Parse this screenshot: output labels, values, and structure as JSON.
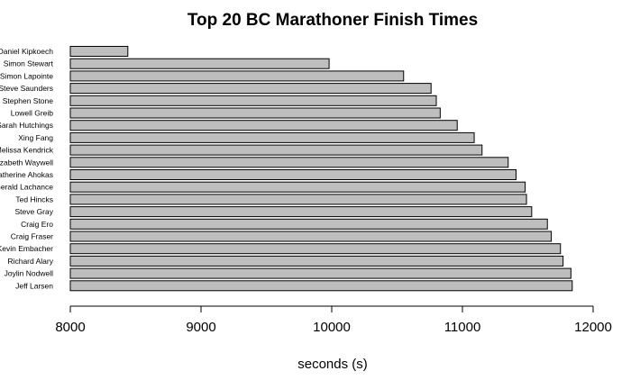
{
  "chart_data": {
    "type": "bar",
    "orientation": "horizontal",
    "title": "Top 20 BC Marathoner Finish Times",
    "xlabel": "seconds (s)",
    "ylabel": "",
    "xlim": [
      8000,
      12000
    ],
    "xticks": [
      "8000",
      "9000",
      "10000",
      "11000",
      "12000"
    ],
    "grid": false,
    "legend": "none",
    "bar_color": "#bebebe",
    "categories": [
      "Daniel Kipkoech",
      "Simon Stewart",
      "Simon Lapointe",
      "Steve Saunders",
      "Stephen Stone",
      "Lowell Greib",
      "Sarah Hutchings",
      "Xing Fang",
      "Melissa Kendrick",
      "Elizabeth Waywell",
      "Katherine Ahokas",
      "Gerald Lachance",
      "Ted Hincks",
      "Steve Gray",
      "Craig Ero",
      "Craig Fraser",
      "Kevin Embacher",
      "Richard Alary",
      "Joylin Nodwell",
      "Jeff Larsen"
    ],
    "values": [
      8440,
      9980,
      10550,
      10760,
      10800,
      10830,
      10960,
      11090,
      11150,
      11350,
      11410,
      11480,
      11490,
      11530,
      11650,
      11680,
      11750,
      11770,
      11830,
      11840
    ]
  }
}
